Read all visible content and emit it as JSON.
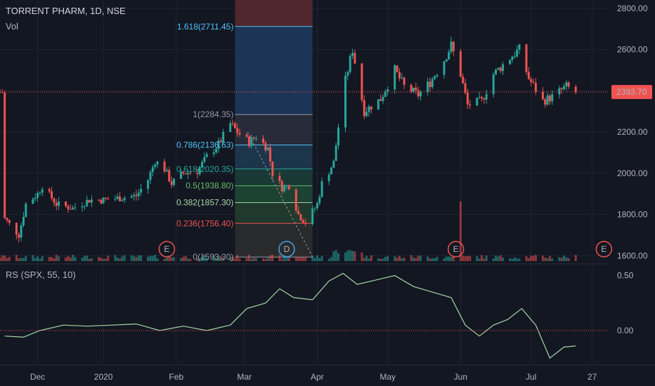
{
  "header": {
    "symbol_line": "TORRENT PHARM, 1D, NSE",
    "volume_label": "Vol"
  },
  "indicator": {
    "label": "RS (SPX, 55, 10)"
  },
  "last_price": {
    "label": "2393.70",
    "value": 2393.7,
    "color": "#f05350"
  },
  "colors": {
    "up": "#26a69a",
    "down": "#ef5350",
    "rs_line": "#a5d6a7",
    "grid": "#1f2430",
    "bg": "#131722"
  },
  "chart_data": [
    {
      "type": "candlestick",
      "title": "TORRENT PHARM, 1D, NSE",
      "y_axis_ticks": [
        "2800.00",
        "2600.00",
        "2400.00",
        "2200.00",
        "2000.00",
        "1800.00",
        "1600.00"
      ],
      "y_axis_values": [
        2800,
        2600,
        2400,
        2200,
        2000,
        1800,
        1600
      ],
      "ylim": [
        1560,
        2840
      ],
      "x_axis_ticks": [
        "Dec",
        "2020",
        "Feb",
        "Mar",
        "Apr",
        "May",
        "Jun",
        "Jul",
        "27"
      ],
      "price_path": [
        [
          "2019-11-20",
          1780
        ],
        [
          "2019-11-26",
          1700
        ],
        [
          "2019-11-29",
          1850
        ],
        [
          "2019-12-04",
          1900
        ],
        [
          "2019-12-06",
          1940
        ],
        [
          "2019-12-12",
          1850
        ],
        [
          "2019-12-19",
          1830
        ],
        [
          "2019-12-26",
          1870
        ],
        [
          "2020-01-01",
          1870
        ],
        [
          "2020-01-08",
          1880
        ],
        [
          "2020-01-15",
          1890
        ],
        [
          "2020-01-20",
          1970
        ],
        [
          "2020-01-23",
          2060
        ],
        [
          "2020-01-27",
          2020
        ],
        [
          "2020-01-30",
          1950
        ],
        [
          "2020-02-04",
          2000
        ],
        [
          "2020-02-10",
          2010
        ],
        [
          "2020-02-14",
          2080
        ],
        [
          "2020-02-19",
          2140
        ],
        [
          "2020-02-24",
          2240
        ],
        [
          "2020-02-27",
          2200
        ],
        [
          "2020-03-03",
          2150
        ],
        [
          "2020-03-06",
          2180
        ],
        [
          "2020-03-11",
          2120
        ],
        [
          "2020-03-13",
          2000
        ],
        [
          "2020-03-17",
          1930
        ],
        [
          "2020-03-20",
          1940
        ],
        [
          "2020-03-24",
          1800
        ],
        [
          "2020-03-27",
          1760
        ],
        [
          "2020-04-01",
          1850
        ],
        [
          "2020-04-03",
          1950
        ],
        [
          "2020-04-08",
          2050
        ],
        [
          "2020-04-12",
          2400
        ],
        [
          "2020-04-16",
          2600
        ],
        [
          "2020-04-21",
          2300
        ],
        [
          "2020-04-28",
          2360
        ],
        [
          "2020-05-04",
          2500
        ],
        [
          "2020-05-08",
          2420
        ],
        [
          "2020-05-14",
          2380
        ],
        [
          "2020-05-19",
          2440
        ],
        [
          "2020-05-25",
          2550
        ],
        [
          "2020-05-28",
          2620
        ],
        [
          "2020-06-01",
          2480
        ],
        [
          "2020-06-04",
          2330
        ],
        [
          "2020-06-10",
          2350
        ],
        [
          "2020-06-15",
          2480
        ],
        [
          "2020-06-22",
          2560
        ],
        [
          "2020-06-26",
          2600
        ],
        [
          "2020-06-30",
          2460
        ],
        [
          "2020-07-06",
          2350
        ],
        [
          "2020-07-10",
          2370
        ],
        [
          "2020-07-16",
          2420
        ],
        [
          "2020-07-20",
          2393.7
        ]
      ],
      "events": [
        {
          "date": "2020-01-28",
          "label": "E"
        },
        {
          "date": "2020-03-19",
          "label": "D"
        },
        {
          "date": "2020-05-30",
          "label": "E"
        },
        {
          "date": "2020-08-01",
          "label": "E"
        }
      ],
      "fibonacci": {
        "start_date": "2020-02-26",
        "end_date": "2020-03-30",
        "levels": [
          {
            "label": "1.618(2711.45)",
            "value": 2711.45,
            "color": "#4fc3f7"
          },
          {
            "label": "1(2284.35)",
            "value": 2284.35,
            "color": "#9598a1"
          },
          {
            "label": "0.786(2136.63)",
            "value": 2136.63,
            "color": "#4fc3f7"
          },
          {
            "label": "0.618(2020.35)",
            "value": 2020.35,
            "color": "#26a69a"
          },
          {
            "label": "0.5(1938.80)",
            "value": 1938.8,
            "color": "#66bb6a"
          },
          {
            "label": "0.382(1857.30)",
            "value": 1857.3,
            "color": "#a5d6a7"
          },
          {
            "label": "0.236(1756.40)",
            "value": 1756.4,
            "color": "#ef5350"
          },
          {
            "label": "0(1593.30)",
            "value": 1593.3,
            "color": "#9598a1"
          }
        ]
      }
    },
    {
      "type": "line",
      "title": "RS (SPX, 55, 10)",
      "y_axis_ticks": [
        "0.50",
        "0.00"
      ],
      "y_axis_values": [
        0.5,
        0
      ],
      "ylim": [
        -0.3,
        0.6
      ],
      "x": [
        "2019-11-20",
        "2019-11-28",
        "2019-12-05",
        "2019-12-15",
        "2019-12-25",
        "2020-01-05",
        "2020-01-15",
        "2020-01-25",
        "2020-02-04",
        "2020-02-14",
        "2020-02-24",
        "2020-03-02",
        "2020-03-10",
        "2020-03-16",
        "2020-03-22",
        "2020-03-30",
        "2020-04-06",
        "2020-04-12",
        "2020-04-18",
        "2020-04-26",
        "2020-05-04",
        "2020-05-12",
        "2020-05-20",
        "2020-05-28",
        "2020-06-03",
        "2020-06-09",
        "2020-06-15",
        "2020-06-21",
        "2020-06-27",
        "2020-07-03",
        "2020-07-09",
        "2020-07-15",
        "2020-07-20"
      ],
      "values": [
        -0.05,
        -0.06,
        0.0,
        0.05,
        0.04,
        0.05,
        0.06,
        0.0,
        0.04,
        0.0,
        0.05,
        0.2,
        0.25,
        0.38,
        0.3,
        0.28,
        0.45,
        0.52,
        0.42,
        0.46,
        0.5,
        0.4,
        0.35,
        0.3,
        0.05,
        -0.05,
        0.05,
        0.1,
        0.2,
        0.05,
        -0.25,
        -0.15,
        -0.14
      ]
    }
  ]
}
